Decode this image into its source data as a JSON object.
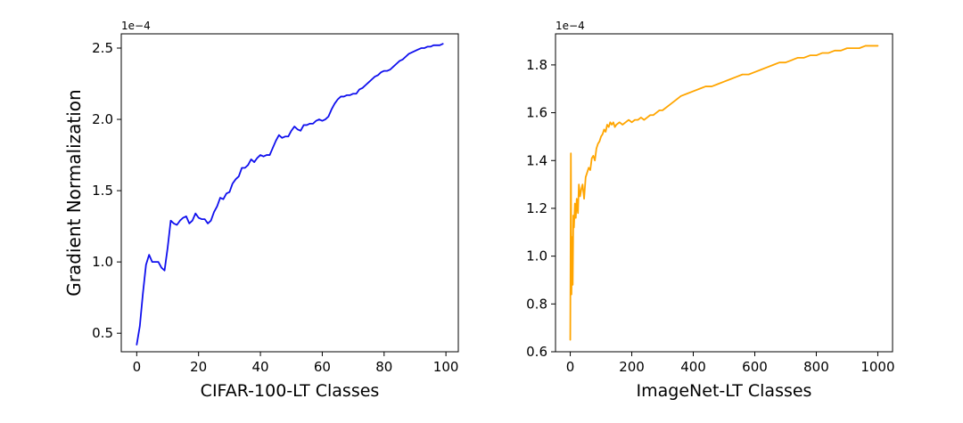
{
  "chart_data": [
    {
      "type": "line",
      "xlabel": "CIFAR-100-LT Classes",
      "ylabel": "Gradient Normalization",
      "offset_text": "1e−4",
      "xlim": [
        -5,
        104
      ],
      "ylim": [
        0.37,
        2.6
      ],
      "xticks": [
        0,
        20,
        40,
        60,
        80,
        100
      ],
      "yticks": [
        0.5,
        1.0,
        1.5,
        2.0,
        2.5
      ],
      "grid": false,
      "series": [
        {
          "color": "#1010ee",
          "x": [
            0,
            1,
            2,
            3,
            4,
            5,
            6,
            7,
            8,
            9,
            10,
            11,
            12,
            13,
            14,
            15,
            16,
            17,
            18,
            19,
            20,
            21,
            22,
            23,
            24,
            25,
            26,
            27,
            28,
            29,
            30,
            31,
            32,
            33,
            34,
            35,
            36,
            37,
            38,
            39,
            40,
            41,
            42,
            43,
            44,
            45,
            46,
            47,
            48,
            49,
            50,
            51,
            52,
            53,
            54,
            55,
            56,
            57,
            58,
            59,
            60,
            61,
            62,
            63,
            64,
            65,
            66,
            67,
            68,
            69,
            70,
            71,
            72,
            73,
            74,
            75,
            76,
            77,
            78,
            79,
            80,
            81,
            82,
            83,
            84,
            85,
            86,
            87,
            88,
            89,
            90,
            91,
            92,
            93,
            94,
            95,
            96,
            97,
            98,
            99
          ],
          "y": [
            0.42,
            0.55,
            0.78,
            0.98,
            1.05,
            1.0,
            1.0,
            1.0,
            0.96,
            0.94,
            1.1,
            1.29,
            1.27,
            1.26,
            1.29,
            1.31,
            1.32,
            1.27,
            1.29,
            1.34,
            1.31,
            1.3,
            1.3,
            1.27,
            1.29,
            1.35,
            1.39,
            1.45,
            1.44,
            1.48,
            1.49,
            1.55,
            1.58,
            1.6,
            1.66,
            1.66,
            1.68,
            1.72,
            1.7,
            1.73,
            1.75,
            1.74,
            1.75,
            1.75,
            1.8,
            1.85,
            1.89,
            1.87,
            1.88,
            1.88,
            1.92,
            1.95,
            1.93,
            1.92,
            1.96,
            1.96,
            1.97,
            1.97,
            1.99,
            2.0,
            1.99,
            2.0,
            2.02,
            2.07,
            2.11,
            2.14,
            2.16,
            2.16,
            2.17,
            2.17,
            2.18,
            2.18,
            2.21,
            2.22,
            2.24,
            2.26,
            2.28,
            2.3,
            2.31,
            2.33,
            2.34,
            2.34,
            2.35,
            2.37,
            2.39,
            2.41,
            2.42,
            2.44,
            2.46,
            2.47,
            2.48,
            2.49,
            2.5,
            2.5,
            2.51,
            2.51,
            2.52,
            2.52,
            2.52,
            2.53
          ]
        }
      ]
    },
    {
      "type": "line",
      "xlabel": "ImageNet-LT Classes",
      "ylabel": "",
      "offset_text": "1e−4",
      "xlim": [
        -48,
        1048
      ],
      "ylim": [
        0.6,
        1.93
      ],
      "xticks": [
        0,
        200,
        400,
        600,
        800,
        1000
      ],
      "yticks": [
        0.6,
        0.8,
        1.0,
        1.2,
        1.4,
        1.6,
        1.8
      ],
      "grid": false,
      "series": [
        {
          "color": "#ffa500",
          "x": [
            0,
            2,
            4,
            6,
            8,
            10,
            12,
            15,
            18,
            21,
            25,
            28,
            32,
            36,
            40,
            45,
            50,
            55,
            60,
            65,
            70,
            75,
            80,
            85,
            90,
            95,
            100,
            105,
            110,
            115,
            120,
            125,
            130,
            135,
            140,
            145,
            150,
            160,
            170,
            180,
            190,
            200,
            210,
            220,
            230,
            240,
            250,
            260,
            270,
            280,
            290,
            300,
            320,
            340,
            360,
            380,
            400,
            420,
            440,
            460,
            480,
            500,
            520,
            540,
            560,
            580,
            600,
            620,
            640,
            660,
            680,
            700,
            720,
            740,
            760,
            780,
            800,
            820,
            840,
            860,
            880,
            900,
            920,
            940,
            960,
            980,
            1000
          ],
          "y": [
            0.65,
            1.43,
            0.84,
            1.08,
            0.88,
            1.17,
            1.12,
            1.22,
            1.16,
            1.24,
            1.18,
            1.3,
            1.25,
            1.28,
            1.3,
            1.24,
            1.33,
            1.35,
            1.37,
            1.36,
            1.41,
            1.42,
            1.4,
            1.45,
            1.47,
            1.48,
            1.5,
            1.51,
            1.53,
            1.52,
            1.55,
            1.54,
            1.56,
            1.55,
            1.56,
            1.54,
            1.55,
            1.56,
            1.55,
            1.56,
            1.57,
            1.56,
            1.57,
            1.57,
            1.58,
            1.57,
            1.58,
            1.59,
            1.59,
            1.6,
            1.61,
            1.61,
            1.63,
            1.65,
            1.67,
            1.68,
            1.69,
            1.7,
            1.71,
            1.71,
            1.72,
            1.73,
            1.74,
            1.75,
            1.76,
            1.76,
            1.77,
            1.78,
            1.79,
            1.8,
            1.81,
            1.81,
            1.82,
            1.83,
            1.83,
            1.84,
            1.84,
            1.85,
            1.85,
            1.86,
            1.86,
            1.87,
            1.87,
            1.87,
            1.88,
            1.88,
            1.88
          ]
        }
      ]
    }
  ]
}
